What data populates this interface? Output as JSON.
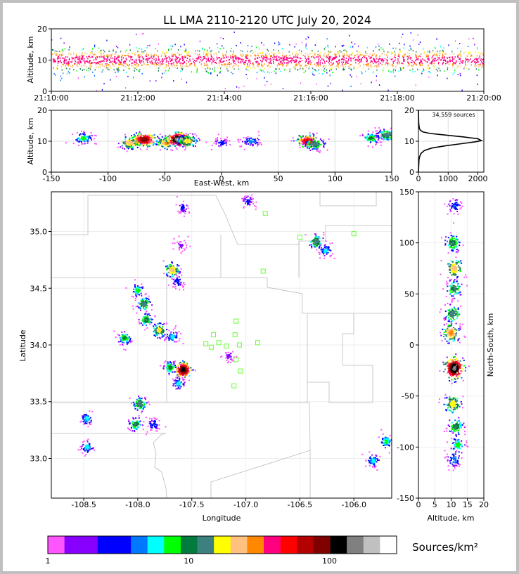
{
  "chart_data": [
    {
      "panel": "time-height",
      "type": "scatter",
      "title": "LL LMA 2110-2120 UTC July 20, 2024",
      "ylabel": "Altitude, km",
      "xlabel": "",
      "xlim": [
        "21:10:00",
        "21:20:00"
      ],
      "ylim": [
        0,
        20
      ],
      "x_ticks": [
        "21:10:00",
        "21:12:00",
        "21:14:00",
        "21:16:00",
        "21:18:00",
        "21:20:00"
      ],
      "y_ticks": [
        0,
        10,
        20
      ],
      "altitude_band_km": [
        7,
        13
      ],
      "altitude_peak_km": 10
    },
    {
      "panel": "east-west-altitude",
      "type": "heatmap",
      "xlabel": "East-West, km",
      "ylabel": "Altitude, km",
      "xlim": [
        -150,
        150
      ],
      "ylim": [
        0,
        20
      ],
      "x_ticks": [
        -150,
        -100,
        -50,
        0,
        50,
        100,
        150
      ],
      "y_ticks": [
        0,
        10,
        20
      ],
      "clusters": [
        {
          "x_km": -122,
          "alt_km": 11,
          "intensity": 8
        },
        {
          "x_km": -80,
          "alt_km": 9.5,
          "intensity": 25
        },
        {
          "x_km": -68,
          "alt_km": 10.5,
          "intensity": 90
        },
        {
          "x_km": -48,
          "alt_km": 9.5,
          "intensity": 30
        },
        {
          "x_km": -37,
          "alt_km": 10.5,
          "intensity": 200
        },
        {
          "x_km": -30,
          "alt_km": 10,
          "intensity": 20
        },
        {
          "x_km": 0,
          "alt_km": 9.5,
          "intensity": 3
        },
        {
          "x_km": 26,
          "alt_km": 10,
          "intensity": 5
        },
        {
          "x_km": 76,
          "alt_km": 10,
          "intensity": 60
        },
        {
          "x_km": 82,
          "alt_km": 9,
          "intensity": 15
        },
        {
          "x_km": 132,
          "alt_km": 11,
          "intensity": 10
        },
        {
          "x_km": 146,
          "alt_km": 12,
          "intensity": 15
        }
      ]
    },
    {
      "panel": "altitude-histogram",
      "type": "line",
      "annotation": "34,559 sources",
      "xlim": [
        0,
        2200
      ],
      "ylim": [
        0,
        20
      ],
      "x_ticks": [
        0,
        1000,
        2000
      ],
      "y_ticks": [
        0,
        10,
        20
      ],
      "x": [
        0,
        10,
        20,
        40,
        80,
        200,
        450,
        900,
        1450,
        1900,
        2120,
        2000,
        1500,
        900,
        400,
        150,
        60,
        30,
        20,
        10,
        5,
        0
      ],
      "y": [
        0,
        2,
        4,
        5,
        6,
        7,
        7.8,
        8.5,
        9.2,
        9.8,
        10.2,
        10.8,
        11.4,
        12,
        12.5,
        13,
        13.6,
        14.2,
        15,
        16,
        18,
        20
      ]
    },
    {
      "panel": "plan-view",
      "type": "heatmap",
      "xlabel": "Longitude",
      "ylabel": "Latitude",
      "xlim": [
        -108.8,
        -105.65
      ],
      "ylim": [
        32.65,
        35.35
      ],
      "x_ticks": [
        -108.5,
        -108.0,
        -107.5,
        -107.0,
        -106.5,
        -106.0
      ],
      "y_ticks": [
        33.0,
        33.5,
        34.0,
        34.5,
        35.0
      ],
      "clusters": [
        {
          "lon": -107.58,
          "lat": 35.21,
          "intensity": 3
        },
        {
          "lon": -106.98,
          "lat": 35.27,
          "intensity": 3
        },
        {
          "lon": -107.6,
          "lat": 34.88,
          "intensity": 2
        },
        {
          "lon": -106.35,
          "lat": 34.91,
          "intensity": 15
        },
        {
          "lon": -106.26,
          "lat": 34.83,
          "intensity": 6
        },
        {
          "lon": -107.68,
          "lat": 34.66,
          "intensity": 25
        },
        {
          "lon": -107.63,
          "lat": 34.56,
          "intensity": 4
        },
        {
          "lon": -108.0,
          "lat": 34.48,
          "intensity": 8
        },
        {
          "lon": -107.94,
          "lat": 34.36,
          "intensity": 15
        },
        {
          "lon": -107.92,
          "lat": 34.22,
          "intensity": 12
        },
        {
          "lon": -107.8,
          "lat": 34.13,
          "intensity": 20
        },
        {
          "lon": -107.68,
          "lat": 34.07,
          "intensity": 6
        },
        {
          "lon": -108.12,
          "lat": 34.06,
          "intensity": 10
        },
        {
          "lon": -107.15,
          "lat": 33.9,
          "intensity": 2
        },
        {
          "lon": -107.58,
          "lat": 33.78,
          "intensity": 120
        },
        {
          "lon": -107.7,
          "lat": 33.8,
          "intensity": 10
        },
        {
          "lon": -107.62,
          "lat": 33.66,
          "intensity": 6
        },
        {
          "lon": -107.98,
          "lat": 33.48,
          "intensity": 15
        },
        {
          "lon": -108.02,
          "lat": 33.3,
          "intensity": 12
        },
        {
          "lon": -107.85,
          "lat": 33.3,
          "intensity": 4
        },
        {
          "lon": -108.47,
          "lat": 33.35,
          "intensity": 6
        },
        {
          "lon": -108.47,
          "lat": 33.1,
          "intensity": 6
        },
        {
          "lon": -105.7,
          "lat": 33.15,
          "intensity": 8
        },
        {
          "lon": -105.82,
          "lat": 32.98,
          "intensity": 6
        }
      ],
      "stations": [
        {
          "lon": -106.82,
          "lat": 35.16
        },
        {
          "lon": -106.0,
          "lat": 34.98
        },
        {
          "lon": -106.5,
          "lat": 34.95
        },
        {
          "lon": -106.84,
          "lat": 34.65
        },
        {
          "lon": -107.09,
          "lat": 34.21
        },
        {
          "lon": -107.1,
          "lat": 34.09
        },
        {
          "lon": -107.3,
          "lat": 34.09
        },
        {
          "lon": -107.25,
          "lat": 34.02
        },
        {
          "lon": -107.37,
          "lat": 34.01
        },
        {
          "lon": -107.32,
          "lat": 33.98
        },
        {
          "lon": -107.18,
          "lat": 33.99
        },
        {
          "lon": -107.06,
          "lat": 34.0
        },
        {
          "lon": -106.89,
          "lat": 34.02
        },
        {
          "lon": -107.09,
          "lat": 33.87
        },
        {
          "lon": -107.05,
          "lat": 33.77
        },
        {
          "lon": -107.11,
          "lat": 33.64
        }
      ]
    },
    {
      "panel": "altitude-north-south",
      "type": "heatmap",
      "xlabel": "Altitude, km",
      "ylabel": "North-South, km",
      "xlim": [
        0,
        20
      ],
      "ylim": [
        -150,
        150
      ],
      "x_ticks": [
        0,
        5,
        10,
        15,
        20
      ],
      "y_ticks": [
        -150,
        -100,
        -50,
        0,
        50,
        100,
        150
      ],
      "clusters": [
        {
          "alt_km": 11,
          "y_km": 136,
          "intensity": 4
        },
        {
          "alt_km": 10.5,
          "y_km": 100,
          "intensity": 12
        },
        {
          "alt_km": 11,
          "y_km": 75,
          "intensity": 25
        },
        {
          "alt_km": 11,
          "y_km": 55,
          "intensity": 12
        },
        {
          "alt_km": 10.5,
          "y_km": 30,
          "intensity": 15
        },
        {
          "alt_km": 10,
          "y_km": 12,
          "intensity": 30
        },
        {
          "alt_km": 11,
          "y_km": -23,
          "intensity": 150
        },
        {
          "alt_km": 10.5,
          "y_km": -58,
          "intensity": 20
        },
        {
          "alt_km": 11.5,
          "y_km": -80,
          "intensity": 12
        },
        {
          "alt_km": 12,
          "y_km": -98,
          "intensity": 8
        },
        {
          "alt_km": 11,
          "y_km": -112,
          "intensity": 5
        }
      ]
    }
  ],
  "colorbar": {
    "label": "Sources/km²",
    "tick_labels": [
      "1",
      "10",
      "100"
    ],
    "scale": "log",
    "range": [
      1,
      300
    ],
    "colors": [
      "#ff55ff",
      "#8800ff",
      "#8800ff",
      "#0000ff",
      "#0000ff",
      "#0077ff",
      "#00ffff",
      "#00ff00",
      "#007a3d",
      "#3d8080",
      "#ffff00",
      "#ffc080",
      "#ff8800",
      "#ff0080",
      "#ff0000",
      "#b30000",
      "#800000",
      "#000000",
      "#808080",
      "#c0c0c0",
      "#ffffff"
    ]
  }
}
